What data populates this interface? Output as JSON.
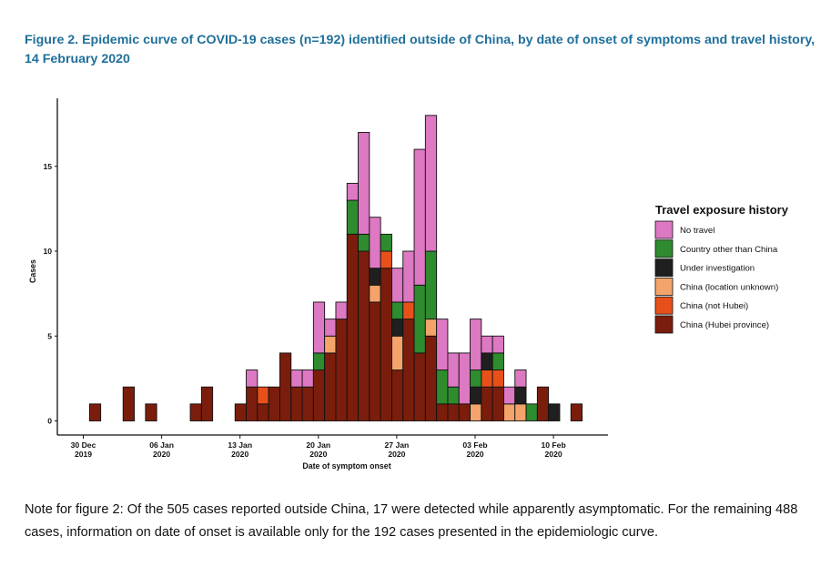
{
  "title": "Figure 2. Epidemic curve of COVID-19 cases (n=192) identified outside of China, by date of onset of symptoms and travel history, 14 February 2020",
  "note": "Note for figure 2: Of the 505 cases reported outside China, 17 were detected while apparently asymptomatic. For the remaining 488 cases, information on date of onset is available only for the 192 cases presented in the epidemiologic curve.",
  "chart_data": {
    "type": "bar",
    "stacked": true,
    "xlabel": "Date of symptom onset",
    "ylabel": "Cases",
    "ylim": [
      0,
      18.5
    ],
    "yticks": [
      0,
      5,
      10,
      15
    ],
    "x_start": "2019-12-30",
    "x_end": "2020-02-15",
    "xticks": [
      {
        "day": 0,
        "line1": "30 Dec",
        "line2": "2019"
      },
      {
        "day": 7,
        "line1": "06 Jan",
        "line2": "2020"
      },
      {
        "day": 14,
        "line1": "13 Jan",
        "line2": "2020"
      },
      {
        "day": 21,
        "line1": "20 Jan",
        "line2": "2020"
      },
      {
        "day": 28,
        "line1": "27 Jan",
        "line2": "2020"
      },
      {
        "day": 35,
        "line1": "03 Feb",
        "line2": "2020"
      },
      {
        "day": 42,
        "line1": "10 Feb",
        "line2": "2020"
      }
    ],
    "legend_title": "Travel exposure history",
    "series": [
      {
        "name": "China (Hubei province)",
        "color": "#7b1d0c"
      },
      {
        "name": "China (not Hubei)",
        "color": "#e8501a"
      },
      {
        "name": "China (location unknown)",
        "color": "#f4a46a"
      },
      {
        "name": "Under investigation",
        "color": "#1f1f1f"
      },
      {
        "name": "Country other than China",
        "color": "#2e8b2e"
      },
      {
        "name": "No travel",
        "color": "#dd78c3"
      }
    ],
    "legend_order": [
      "No travel",
      "Country other than China",
      "Under investigation",
      "China (location unknown)",
      "China (not Hubei)",
      "China (Hubei province)"
    ],
    "bars": [
      {
        "day": 0,
        "counts": [
          1,
          0,
          0,
          0,
          0,
          0
        ]
      },
      {
        "day": 3,
        "counts": [
          2,
          0,
          0,
          0,
          0,
          0
        ]
      },
      {
        "day": 5,
        "counts": [
          1,
          0,
          0,
          0,
          0,
          0
        ]
      },
      {
        "day": 9,
        "counts": [
          1,
          0,
          0,
          0,
          0,
          0
        ]
      },
      {
        "day": 10,
        "counts": [
          2,
          0,
          0,
          0,
          0,
          0
        ]
      },
      {
        "day": 13,
        "counts": [
          1,
          0,
          0,
          0,
          0,
          0
        ]
      },
      {
        "day": 14,
        "counts": [
          2,
          0,
          0,
          0,
          0,
          1
        ]
      },
      {
        "day": 15,
        "counts": [
          1,
          1,
          0,
          0,
          0,
          0
        ]
      },
      {
        "day": 16,
        "counts": [
          2,
          0,
          0,
          0,
          0,
          0
        ]
      },
      {
        "day": 17,
        "counts": [
          4,
          0,
          0,
          0,
          0,
          0
        ]
      },
      {
        "day": 18,
        "counts": [
          2,
          0,
          0,
          0,
          0,
          1
        ]
      },
      {
        "day": 19,
        "counts": [
          2,
          0,
          0,
          0,
          0,
          1
        ]
      },
      {
        "day": 20,
        "counts": [
          3,
          0,
          0,
          0,
          1,
          3
        ]
      },
      {
        "day": 21,
        "counts": [
          4,
          0,
          1,
          0,
          0,
          1
        ]
      },
      {
        "day": 22,
        "counts": [
          6,
          0,
          0,
          0,
          0,
          1
        ]
      },
      {
        "day": 23,
        "counts": [
          11,
          0,
          0,
          0,
          2,
          1
        ]
      },
      {
        "day": 24,
        "counts": [
          10,
          0,
          0,
          0,
          1,
          6
        ]
      },
      {
        "day": 25,
        "counts": [
          7,
          0,
          1,
          1,
          0,
          3
        ]
      },
      {
        "day": 26,
        "counts": [
          9,
          1,
          0,
          0,
          1,
          0
        ]
      },
      {
        "day": 27,
        "counts": [
          3,
          0,
          2,
          1,
          1,
          2
        ]
      },
      {
        "day": 28,
        "counts": [
          6,
          1,
          0,
          0,
          0,
          3
        ]
      },
      {
        "day": 29,
        "counts": [
          4,
          0,
          0,
          0,
          4,
          8
        ]
      },
      {
        "day": 30,
        "counts": [
          5,
          0,
          1,
          0,
          4,
          8
        ]
      },
      {
        "day": 31,
        "counts": [
          1,
          0,
          0,
          0,
          2,
          3
        ]
      },
      {
        "day": 32,
        "counts": [
          1,
          0,
          0,
          0,
          1,
          2
        ]
      },
      {
        "day": 33,
        "counts": [
          1,
          0,
          0,
          0,
          0,
          3
        ]
      },
      {
        "day": 34,
        "counts": [
          0,
          0,
          1,
          1,
          1,
          3
        ]
      },
      {
        "day": 35,
        "counts": [
          2,
          1,
          0,
          1,
          0,
          1
        ]
      },
      {
        "day": 36,
        "counts": [
          2,
          1,
          0,
          0,
          1,
          1
        ]
      },
      {
        "day": 37,
        "counts": [
          0,
          0,
          1,
          0,
          0,
          1
        ]
      },
      {
        "day": 38,
        "counts": [
          0,
          0,
          1,
          1,
          0,
          1
        ]
      },
      {
        "day": 39,
        "counts": [
          0,
          0,
          0,
          0,
          1,
          0
        ]
      },
      {
        "day": 40,
        "counts": [
          2,
          0,
          0,
          0,
          0,
          0
        ]
      },
      {
        "day": 41,
        "counts": [
          0,
          0,
          0,
          1,
          0,
          0
        ]
      },
      {
        "day": 43,
        "counts": [
          1,
          0,
          0,
          0,
          0,
          0
        ]
      }
    ]
  }
}
